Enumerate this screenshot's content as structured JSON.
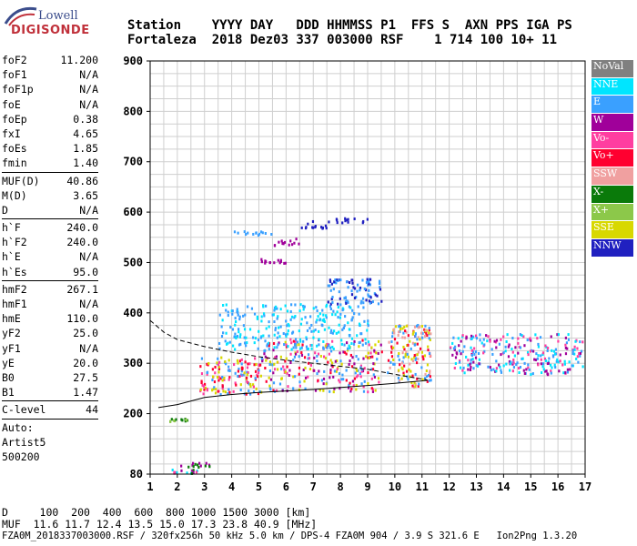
{
  "logo": {
    "line1": "Lowell",
    "line2": "DIGISONDE"
  },
  "header": {
    "labels": "Station    YYYY DAY   DDD HHMMSS P1  FFS S  AXN PPS IGA PS",
    "values": "Fortaleza  2018 Dez03 337 003000 RSF    1 714 100 10+ 11"
  },
  "params": [
    {
      "k": "foF2",
      "v": "11.200"
    },
    {
      "k": "foF1",
      "v": "N/A"
    },
    {
      "k": "foF1p",
      "v": "N/A"
    },
    {
      "k": "foE",
      "v": "N/A"
    },
    {
      "k": "foEp",
      "v": "0.38"
    },
    {
      "k": "fxI",
      "v": "4.65"
    },
    {
      "k": "foEs",
      "v": "1.85"
    },
    {
      "k": "fmin",
      "v": "1.40"
    },
    {
      "sep": true
    },
    {
      "k": "MUF(D)",
      "v": "40.86"
    },
    {
      "k": "M(D)",
      "v": "3.65"
    },
    {
      "k": "D",
      "v": "N/A"
    },
    {
      "sep": true
    },
    {
      "k": "h`F",
      "v": "240.0"
    },
    {
      "k": "h`F2",
      "v": "240.0"
    },
    {
      "k": "h`E",
      "v": "N/A"
    },
    {
      "k": "h`Es",
      "v": "95.0"
    },
    {
      "sep": true
    },
    {
      "k": "hmF2",
      "v": "267.1"
    },
    {
      "k": "hmF1",
      "v": "N/A"
    },
    {
      "k": "hmE",
      "v": "110.0"
    },
    {
      "k": "yF2",
      "v": "25.0"
    },
    {
      "k": "yF1",
      "v": "N/A"
    },
    {
      "k": "yE",
      "v": "20.0"
    },
    {
      "k": "B0",
      "v": "27.5"
    },
    {
      "k": "B1",
      "v": "1.47"
    },
    {
      "sep": true
    },
    {
      "k": "C-level",
      "v": "44"
    },
    {
      "sep": true
    },
    {
      "k": "Auto:",
      "v": ""
    },
    {
      "k": "Artist5",
      "v": ""
    },
    {
      "k": "500200",
      "v": ""
    }
  ],
  "legend": [
    {
      "label": "NoVal",
      "color": "#808080"
    },
    {
      "label": "NNE",
      "color": "#00e5ff"
    },
    {
      "label": "E",
      "color": "#3aa0ff"
    },
    {
      "label": "W",
      "color": "#a0009a"
    },
    {
      "label": "Vo-",
      "color": "#ff3ea0"
    },
    {
      "label": "Vo+",
      "color": "#ff0030"
    },
    {
      "label": "SSW",
      "color": "#f0a0a0"
    },
    {
      "label": "X-",
      "color": "#0a7a0a"
    },
    {
      "label": "X+",
      "color": "#8cc84a"
    },
    {
      "label": "SSE",
      "color": "#d8d800"
    },
    {
      "label": "NNW",
      "color": "#2020c0"
    }
  ],
  "chart_data": {
    "type": "scatter",
    "xlim": [
      1,
      17
    ],
    "ylim": [
      80,
      900
    ],
    "x_ticks": [
      "1",
      "2",
      "3",
      "4",
      "5",
      "6",
      "7",
      "8",
      "9",
      "10",
      "11",
      "12",
      "13",
      "14",
      "15",
      "16",
      "17"
    ],
    "y_ticks": [
      "900",
      "800",
      "700",
      "600",
      "500",
      "400",
      "300",
      "200",
      "80"
    ],
    "grid": true,
    "traces": [
      {
        "name": "upper dashed",
        "style": "dashed",
        "x": [
          1.0,
          1.5,
          2.0,
          3.0,
          4.0,
          5.0,
          6.0,
          7.0,
          8.0,
          9.0,
          10.0,
          11.2
        ],
        "y": [
          385,
          362,
          347,
          333,
          322,
          313,
          306,
          300,
          294,
          288,
          278,
          267
        ]
      },
      {
        "name": "lower solid",
        "style": "solid",
        "x": [
          1.3,
          2.0,
          3.0,
          4.0,
          5.0,
          6.0,
          7.0,
          8.0,
          9.0,
          10.0,
          11.2
        ],
        "y": [
          212,
          218,
          232,
          238,
          242,
          245,
          248,
          252,
          256,
          260,
          266
        ]
      }
    ],
    "clusters": [
      {
        "x": [
          1.6,
          2.7
        ],
        "y": [
          82,
          92
        ],
        "colors": [
          "#0a7a0a",
          "#a0009a",
          "#00e5ff",
          "#ff3ea0"
        ]
      },
      {
        "x": [
          2.1,
          3.2
        ],
        "y": [
          95,
          108
        ],
        "colors": [
          "#a0009a",
          "#0a7a0a"
        ]
      },
      {
        "x": [
          1.7,
          2.4
        ],
        "y": [
          185,
          192
        ],
        "colors": [
          "#0a7a0a",
          "#8cc84a"
        ]
      },
      {
        "x": [
          2.8,
          5.0
        ],
        "y": [
          240,
          315
        ],
        "colors": [
          "#d8d800",
          "#ff0030",
          "#3aa0ff",
          "#ff3ea0"
        ]
      },
      {
        "x": [
          5.0,
          9.5
        ],
        "y": [
          245,
          350
        ],
        "colors": [
          "#3aa0ff",
          "#ff0030",
          "#d8d800",
          "#ff3ea0",
          "#a0009a"
        ]
      },
      {
        "x": [
          3.5,
          9.0
        ],
        "y": [
          330,
          420
        ],
        "colors": [
          "#3aa0ff",
          "#00e5ff"
        ]
      },
      {
        "x": [
          7.5,
          9.5
        ],
        "y": [
          420,
          470
        ],
        "colors": [
          "#2020c0",
          "#3aa0ff"
        ]
      },
      {
        "x": [
          9.7,
          11.3
        ],
        "y": [
          255,
          380
        ],
        "colors": [
          "#d8d800",
          "#ff0030",
          "#3aa0ff",
          "#f0a0a0"
        ]
      },
      {
        "x": [
          12.0,
          16.9
        ],
        "y": [
          280,
          360
        ],
        "colors": [
          "#00e5ff",
          "#a0009a",
          "#ff3ea0",
          "#3aa0ff"
        ]
      },
      {
        "x": [
          7.5,
          9.0
        ],
        "y": [
          580,
          590
        ],
        "colors": [
          "#2020c0"
        ]
      },
      {
        "x": [
          6.5,
          7.5
        ],
        "y": [
          570,
          585
        ],
        "colors": [
          "#2020c0"
        ]
      },
      {
        "x": [
          5.5,
          6.5
        ],
        "y": [
          535,
          550
        ],
        "colors": [
          "#a0009a"
        ]
      },
      {
        "x": [
          4.0,
          5.5
        ],
        "y": [
          555,
          565
        ],
        "colors": [
          "#3aa0ff"
        ]
      },
      {
        "x": [
          5.0,
          6.0
        ],
        "y": [
          500,
          510
        ],
        "colors": [
          "#a0009a"
        ]
      }
    ]
  },
  "footer": {
    "line1": "D     100  200  400  600  800 1000 1500 3000 [km]",
    "line2": "MUF  11.6 11.7 12.4 13.5 15.0 17.3 23.8 40.9 [MHz]",
    "line3": "FZA0M_2018337003000.RSF / 320fx256h 50 kHz 5.0 km / DPS-4 FZA0M 904 / 3.9 S 321.6 E   Ion2Png 1.3.20"
  }
}
